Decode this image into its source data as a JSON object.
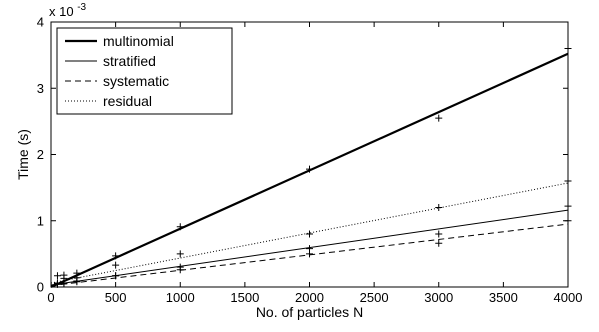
{
  "chart_data": {
    "type": "line",
    "title": "",
    "xlabel": "No. of particles N",
    "ylabel": "Time (s)",
    "y_multiplier_label": "x 10",
    "y_multiplier_exponent": "-3",
    "xlim": [
      0,
      4000
    ],
    "ylim": [
      0,
      4
    ],
    "xticks": [
      0,
      500,
      1000,
      1500,
      2000,
      2500,
      3000,
      3500,
      4000
    ],
    "yticks": [
      0,
      1,
      2,
      3,
      4
    ],
    "grid": false,
    "legend_position": "top-left",
    "series": [
      {
        "name": "multinomial",
        "style": "solid-thick",
        "fit": [
          [
            0,
            0.0
          ],
          [
            4000,
            3.52
          ]
        ],
        "x": [
          50,
          100,
          200,
          500,
          1000,
          2000,
          3000,
          4000
        ],
        "y": [
          0.06,
          0.13,
          0.21,
          0.47,
          0.91,
          1.78,
          2.55,
          3.6
        ]
      },
      {
        "name": "stratified",
        "style": "solid-thin",
        "fit": [
          [
            0,
            0.03
          ],
          [
            4000,
            1.16
          ]
        ],
        "x": [
          50,
          100,
          200,
          500,
          1000,
          2000,
          3000,
          4000
        ],
        "y": [
          0.05,
          0.06,
          0.09,
          0.17,
          0.3,
          0.58,
          0.8,
          1.22
        ]
      },
      {
        "name": "systematic",
        "style": "dashed",
        "fit": [
          [
            0,
            0.02
          ],
          [
            4000,
            0.95
          ]
        ],
        "x": [
          50,
          100,
          200,
          500,
          1000,
          2000,
          3000,
          4000
        ],
        "y": [
          0.04,
          0.05,
          0.08,
          0.17,
          0.26,
          0.5,
          0.66,
          1.0
        ]
      },
      {
        "name": "residual",
        "style": "dotted",
        "fit": [
          [
            0,
            0.06
          ],
          [
            4000,
            1.57
          ]
        ],
        "x": [
          50,
          100,
          200,
          500,
          1000,
          2000,
          3000,
          4000
        ],
        "y": [
          0.17,
          0.18,
          0.14,
          0.33,
          0.5,
          0.8,
          1.2,
          1.6
        ]
      }
    ]
  }
}
